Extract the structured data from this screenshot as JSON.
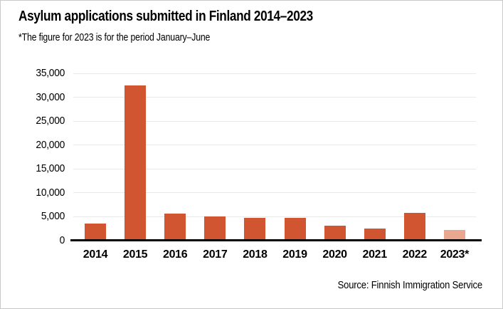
{
  "header": {
    "title": "Asylum applications submitted in Finland 2014–2023",
    "subtitle": "*The figure for 2023 is for the period January–June"
  },
  "footer": {
    "source": "Source: Finnish Immigration Service"
  },
  "chart_data": {
    "type": "bar",
    "title": "Asylum applications submitted in Finland 2014–2023",
    "subtitle_note": "*The figure for 2023 is for the period January–June",
    "categories": [
      "2014",
      "2015",
      "2016",
      "2017",
      "2018",
      "2019",
      "2020",
      "2021",
      "2022",
      "2023*"
    ],
    "values": [
      3600,
      32500,
      5600,
      5100,
      4700,
      4700,
      3200,
      2550,
      5800,
      2250
    ],
    "highlight_index": 9,
    "highlight_reason": "2023 figure covers January–June only",
    "colors": {
      "bar_default": "#d05530",
      "bar_highlight": "#e9a78f",
      "gridline": "#e9e9e9",
      "axis_line": "#000000",
      "text": "#000000"
    },
    "xlabel": "",
    "ylabel": "",
    "ylim": [
      0,
      35000
    ],
    "ytick_interval": 5000,
    "ytick_labels": [
      "0",
      "5,000",
      "10,000",
      "15,000",
      "20,000",
      "25,000",
      "30,000",
      "35,000"
    ],
    "grid": "horizontal",
    "legend": "none",
    "source": "Source: Finnish Immigration Service"
  }
}
